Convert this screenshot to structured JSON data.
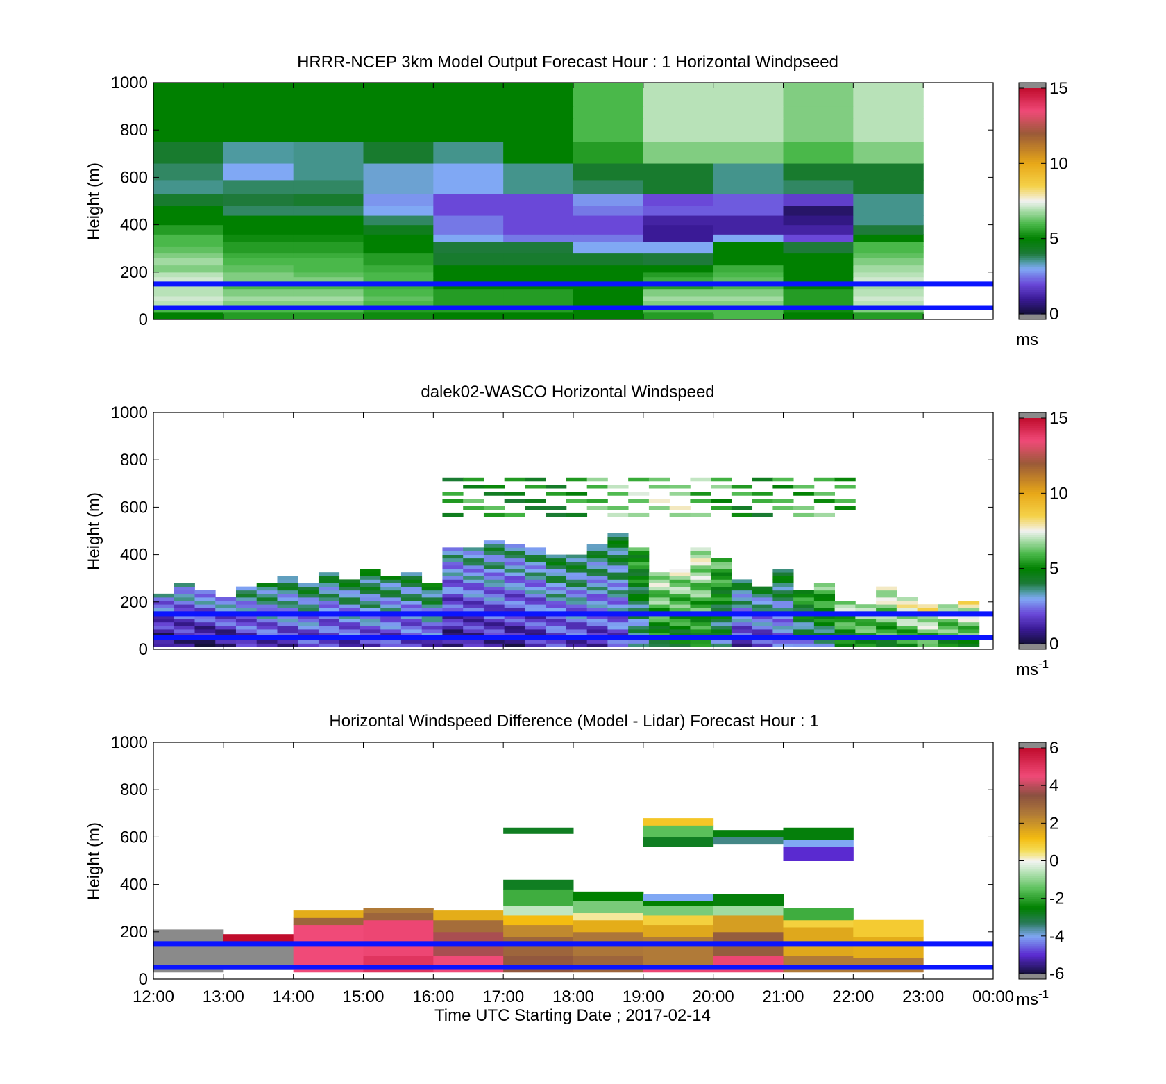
{
  "figure": {
    "x_axis_label": "Time UTC  Starting Date ; 2017-02-14",
    "x_tick_labels": [
      "12:00",
      "13:00",
      "14:00",
      "15:00",
      "16:00",
      "17:00",
      "18:00",
      "19:00",
      "20:00",
      "21:00",
      "22:00",
      "23:00",
      "00:00"
    ],
    "y_axis_label": "Height (m)",
    "y_tick_labels": [
      "0",
      "200",
      "400",
      "600",
      "800",
      "1000"
    ]
  },
  "colors": {
    "reference_line": "#0a14ff",
    "missing": "#8a8a8a",
    "speed_colormap": [
      [
        0,
        "#14103a"
      ],
      [
        1,
        "#3a1a96"
      ],
      [
        2,
        "#6a48d8"
      ],
      [
        3,
        "#80a8f4"
      ],
      [
        3.5,
        "#4e9aa0"
      ],
      [
        4,
        "#1e7a3a"
      ],
      [
        5,
        "#008000"
      ],
      [
        6,
        "#4ab84a"
      ],
      [
        7,
        "#b8e2b8"
      ],
      [
        7.5,
        "#f2f2f2"
      ],
      [
        8.5,
        "#f4d24a"
      ],
      [
        10,
        "#e8a818"
      ],
      [
        12,
        "#9a5a38"
      ],
      [
        13.5,
        "#f04a78"
      ],
      [
        15,
        "#c00c2c"
      ]
    ],
    "diff_colormap": [
      [
        -6,
        "#14103a"
      ],
      [
        -5,
        "#5a2ad0"
      ],
      [
        -4,
        "#80a8f4"
      ],
      [
        -3.3,
        "#2a7a5a"
      ],
      [
        -2.5,
        "#008000"
      ],
      [
        -1.5,
        "#5ac05a"
      ],
      [
        -0.5,
        "#c0e6c0"
      ],
      [
        0,
        "#f4f4f4"
      ],
      [
        0.5,
        "#f4e060"
      ],
      [
        1.2,
        "#f4bc10"
      ],
      [
        2.5,
        "#b07a38"
      ],
      [
        3.5,
        "#8a5040"
      ],
      [
        4.5,
        "#f04a78"
      ],
      [
        6,
        "#c00c2c"
      ]
    ]
  },
  "chart_data": [
    {
      "type": "heatmap",
      "title": "HRRR-NCEP 3km Model Output   Forecast Hour : 1 Horizontal Windpseed",
      "xlabel": "",
      "ylabel": "Height (m)",
      "xlim": [
        12,
        24
      ],
      "ylim": [
        0,
        1000
      ],
      "x_tick_labels": [
        "12:00",
        "13:00",
        "14:00",
        "15:00",
        "16:00",
        "17:00",
        "18:00",
        "19:00",
        "20:00",
        "21:00",
        "22:00",
        "23:00",
        "00:00"
      ],
      "colorbar": {
        "ticks": [
          "0",
          "5",
          "10",
          "15"
        ],
        "range": [
          0,
          15
        ],
        "unit_base": "ms",
        "unit_sup": ""
      },
      "reference_heights_m": [
        150,
        50
      ],
      "x_bins": [
        12,
        13,
        14,
        15,
        16,
        17,
        18,
        19,
        20,
        21,
        22,
        23
      ],
      "y_bins_top_m": [
        30,
        50,
        80,
        100,
        130,
        160,
        180,
        200,
        230,
        260,
        280,
        310,
        330,
        360,
        400,
        440,
        480,
        530,
        590,
        660,
        750,
        850,
        900,
        1000
      ],
      "values": [
        [
          5.0,
          5.5,
          5.5,
          5.2,
          5.0,
          5.0,
          5.0,
          5.5,
          6.0,
          5.0,
          5.5
        ],
        [
          6.0,
          6.0,
          6.0,
          5.5,
          5.5,
          5.5,
          5.0,
          6.0,
          6.0,
          5.2,
          6.5
        ],
        [
          7.0,
          6.5,
          6.5,
          6.0,
          5.5,
          5.5,
          5.0,
          6.5,
          6.5,
          5.5,
          7.0
        ],
        [
          7.2,
          6.8,
          6.8,
          6.2,
          5.5,
          5.5,
          5.0,
          6.8,
          6.8,
          5.5,
          7.2
        ],
        [
          7.0,
          6.5,
          6.5,
          6.0,
          5.5,
          5.5,
          5.0,
          6.5,
          6.5,
          5.5,
          7.0
        ],
        [
          7.0,
          6.0,
          6.0,
          5.8,
          5.0,
          5.0,
          5.0,
          5.5,
          6.0,
          5.0,
          6.8
        ],
        [
          7.2,
          6.5,
          6.5,
          6.0,
          5.0,
          5.0,
          5.0,
          5.8,
          6.2,
          5.0,
          7.2
        ],
        [
          7.0,
          6.5,
          6.2,
          6.0,
          5.0,
          5.0,
          5.0,
          5.5,
          6.0,
          5.0,
          7.0
        ],
        [
          6.5,
          6.2,
          6.0,
          5.8,
          5.0,
          5.0,
          5.0,
          5.0,
          5.8,
          5.0,
          6.8
        ],
        [
          6.8,
          6.0,
          6.0,
          5.5,
          4.2,
          4.2,
          4.2,
          4.0,
          5.0,
          5.0,
          6.5
        ],
        [
          6.5,
          5.8,
          5.8,
          5.5,
          4.2,
          4.2,
          4.2,
          4.0,
          5.0,
          5.0,
          6.2
        ],
        [
          6.2,
          5.5,
          5.5,
          5.0,
          4.0,
          4.0,
          3.0,
          3.0,
          5.0,
          4.0,
          6.0
        ],
        [
          6.0,
          5.5,
          5.5,
          5.0,
          4.0,
          4.0,
          3.0,
          3.0,
          5.0,
          4.0,
          6.0
        ],
        [
          6.0,
          5.2,
          5.2,
          5.0,
          3.0,
          2.5,
          2.5,
          1.0,
          3.0,
          2.0,
          5.0
        ],
        [
          5.5,
          5.0,
          5.0,
          4.5,
          2.5,
          2.0,
          2.0,
          1.0,
          1.2,
          1.2,
          4.0
        ],
        [
          5.0,
          5.0,
          5.0,
          3.8,
          2.5,
          2.0,
          2.0,
          1.2,
          1.2,
          0.8,
          3.6
        ],
        [
          5.0,
          3.8,
          3.8,
          3.0,
          2.0,
          2.0,
          2.5,
          2.2,
          2.2,
          0.5,
          3.6
        ],
        [
          4.2,
          4.0,
          4.2,
          2.8,
          2.0,
          2.0,
          2.8,
          2.0,
          2.2,
          1.8,
          3.6
        ],
        [
          3.6,
          3.8,
          3.8,
          3.2,
          3.0,
          3.6,
          3.8,
          4.2,
          3.6,
          3.8,
          4.2
        ],
        [
          3.8,
          3.0,
          3.6,
          3.2,
          3.0,
          3.6,
          4.2,
          4.2,
          3.6,
          4.2,
          4.2
        ],
        [
          4.2,
          3.5,
          3.6,
          4.2,
          3.6,
          5.0,
          5.5,
          6.5,
          6.5,
          6.0,
          6.5
        ],
        [
          5.0,
          5.0,
          5.0,
          5.0,
          5.0,
          5.0,
          6.0,
          7.0,
          7.0,
          6.5,
          7.0
        ],
        [
          5.0,
          5.0,
          5.0,
          5.0,
          5.0,
          5.0,
          6.0,
          7.0,
          7.0,
          6.5,
          7.0
        ],
        [
          5.0,
          5.0,
          5.0,
          5.0,
          5.0,
          5.0,
          6.0,
          7.0,
          7.0,
          6.5,
          7.0
        ]
      ]
    },
    {
      "type": "heatmap",
      "title": "dalek02-WASCO  Horizontal Windspeed",
      "xlabel": "",
      "ylabel": "Height (m)",
      "xlim": [
        12,
        24
      ],
      "ylim": [
        0,
        1000
      ],
      "x_tick_labels": [
        "12:00",
        "13:00",
        "14:00",
        "15:00",
        "16:00",
        "17:00",
        "18:00",
        "19:00",
        "20:00",
        "21:00",
        "22:00",
        "23:00",
        "00:00"
      ],
      "colorbar": {
        "ticks": [
          "0",
          "5",
          "10",
          "15"
        ],
        "range": [
          0,
          15
        ],
        "unit_base": "ms",
        "unit_sup": "-1"
      },
      "reference_heights_m": [
        150,
        50
      ],
      "top_heights_m": [
        230,
        270,
        240,
        210,
        260,
        270,
        300,
        280,
        320,
        290,
        330,
        310,
        320,
        270,
        430,
        420,
        450,
        440,
        430,
        390,
        400,
        440,
        480,
        420,
        320,
        330,
        420,
        380,
        290,
        260,
        330,
        240,
        270,
        200,
        180,
        260,
        220,
        180,
        180,
        200
      ],
      "column_median_speed_ms": [
        0.5,
        0.8,
        0.6,
        0.6,
        1.2,
        1.5,
        1.5,
        1.6,
        1.5,
        1.6,
        1.8,
        1.6,
        1.6,
        1.8,
        0.8,
        1.0,
        1.2,
        1.0,
        1.2,
        1.6,
        1.6,
        1.5,
        1.8,
        3.0,
        4.6,
        4.5,
        4.8,
        3.5,
        1.5,
        1.5,
        2.0,
        3.0,
        3.6,
        4.4,
        4.8,
        5.0,
        5.3,
        5.5,
        5.0,
        5.3
      ],
      "upper_layer_speed_ms": [
        null,
        null,
        null,
        null,
        null,
        null,
        null,
        null,
        null,
        null,
        null,
        null,
        null,
        null,
        5.0,
        5.5,
        5.3,
        5.0,
        5.0,
        4.8,
        5.2,
        5.8,
        6.2,
        6.5,
        7.0,
        7.2,
        6.2,
        5.8,
        5.2,
        5.0,
        5.5,
        5.8,
        6.0,
        6.0,
        null,
        null,
        null,
        null,
        null,
        null
      ],
      "gap_between_layers_m": [
        500,
        560
      ]
    },
    {
      "type": "heatmap",
      "title": "Horizontal Windspeed Difference (Model - Lidar) Forecast Hour : 1",
      "xlabel": "Time UTC  Starting Date ; 2017-02-14",
      "ylabel": "Height (m)",
      "xlim": [
        12,
        24
      ],
      "ylim": [
        0,
        1000
      ],
      "x_tick_labels": [
        "12:00",
        "13:00",
        "14:00",
        "15:00",
        "16:00",
        "17:00",
        "18:00",
        "19:00",
        "20:00",
        "21:00",
        "22:00",
        "23:00",
        "00:00"
      ],
      "colorbar": {
        "ticks": [
          "-6",
          "-4",
          "-2",
          "0",
          "2",
          "4",
          "6"
        ],
        "range": [
          -6,
          6
        ],
        "unit_base": "ms",
        "unit_sup": "-1"
      },
      "reference_heights_m": [
        150,
        50
      ],
      "columns": [
        {
          "hour": 12,
          "bands": [
            [
              30,
              210,
              "missing"
            ]
          ]
        },
        {
          "hour": 13,
          "bands": [
            [
              40,
              160,
              "missing"
            ],
            [
              160,
              190,
              6.0
            ]
          ]
        },
        {
          "hour": 14,
          "bands": [
            [
              30,
              100,
              4.5
            ],
            [
              100,
              230,
              4.5
            ],
            [
              230,
              260,
              3.0
            ],
            [
              260,
              290,
              1.5
            ]
          ]
        },
        {
          "hour": 15,
          "bands": [
            [
              30,
              100,
              5.0
            ],
            [
              100,
              250,
              4.6
            ],
            [
              250,
              280,
              3.0
            ],
            [
              280,
              300,
              2.5
            ]
          ]
        },
        {
          "hour": 16,
          "bands": [
            [
              30,
              100,
              4.5
            ],
            [
              100,
              200,
              3.8
            ],
            [
              200,
              250,
              2.8
            ],
            [
              250,
              290,
              1.5
            ]
          ]
        },
        {
          "hour": 17,
          "bands": [
            [
              30,
              100,
              3.3
            ],
            [
              100,
              180,
              3.0
            ],
            [
              180,
              230,
              2.2
            ],
            [
              230,
              270,
              1.2
            ],
            [
              270,
              310,
              -0.5
            ],
            [
              310,
              380,
              -1.8
            ],
            [
              380,
              420,
              -2.8
            ],
            [
              615,
              640,
              -2.8
            ]
          ]
        },
        {
          "hour": 18,
          "bands": [
            [
              30,
              100,
              3.0
            ],
            [
              100,
              200,
              2.6
            ],
            [
              200,
              250,
              1.5
            ],
            [
              250,
              280,
              0.3
            ],
            [
              280,
              330,
              -1.2
            ],
            [
              330,
              370,
              -2.5
            ]
          ]
        },
        {
          "hour": 19,
          "bands": [
            [
              30,
              60,
              4.6
            ],
            [
              60,
              180,
              2.5
            ],
            [
              180,
              230,
              1.6
            ],
            [
              230,
              270,
              0.8
            ],
            [
              270,
              310,
              -1.2
            ],
            [
              310,
              330,
              -2.5
            ],
            [
              330,
              360,
              -4.0
            ],
            [
              560,
              600,
              -2.8
            ],
            [
              600,
              650,
              -1.5
            ],
            [
              650,
              680,
              1.0
            ]
          ]
        },
        {
          "hour": 20,
          "bands": [
            [
              30,
              100,
              4.6
            ],
            [
              100,
              200,
              3.2
            ],
            [
              200,
              270,
              1.8
            ],
            [
              270,
              310,
              -0.8
            ],
            [
              310,
              360,
              -2.6
            ],
            [
              570,
              600,
              -3.5
            ],
            [
              600,
              630,
              -2.6
            ]
          ]
        },
        {
          "hour": 21,
          "bands": [
            [
              30,
              100,
              2.5
            ],
            [
              100,
              220,
              1.6
            ],
            [
              220,
              250,
              0.8
            ],
            [
              250,
              300,
              -1.8
            ],
            [
              500,
              560,
              -5.0
            ],
            [
              560,
              590,
              -4.0
            ],
            [
              590,
              640,
              -2.6
            ]
          ]
        },
        {
          "hour": 22,
          "bands": [
            [
              30,
              90,
              2.5
            ],
            [
              90,
              180,
              1.5
            ],
            [
              180,
              250,
              0.9
            ]
          ]
        }
      ]
    }
  ]
}
